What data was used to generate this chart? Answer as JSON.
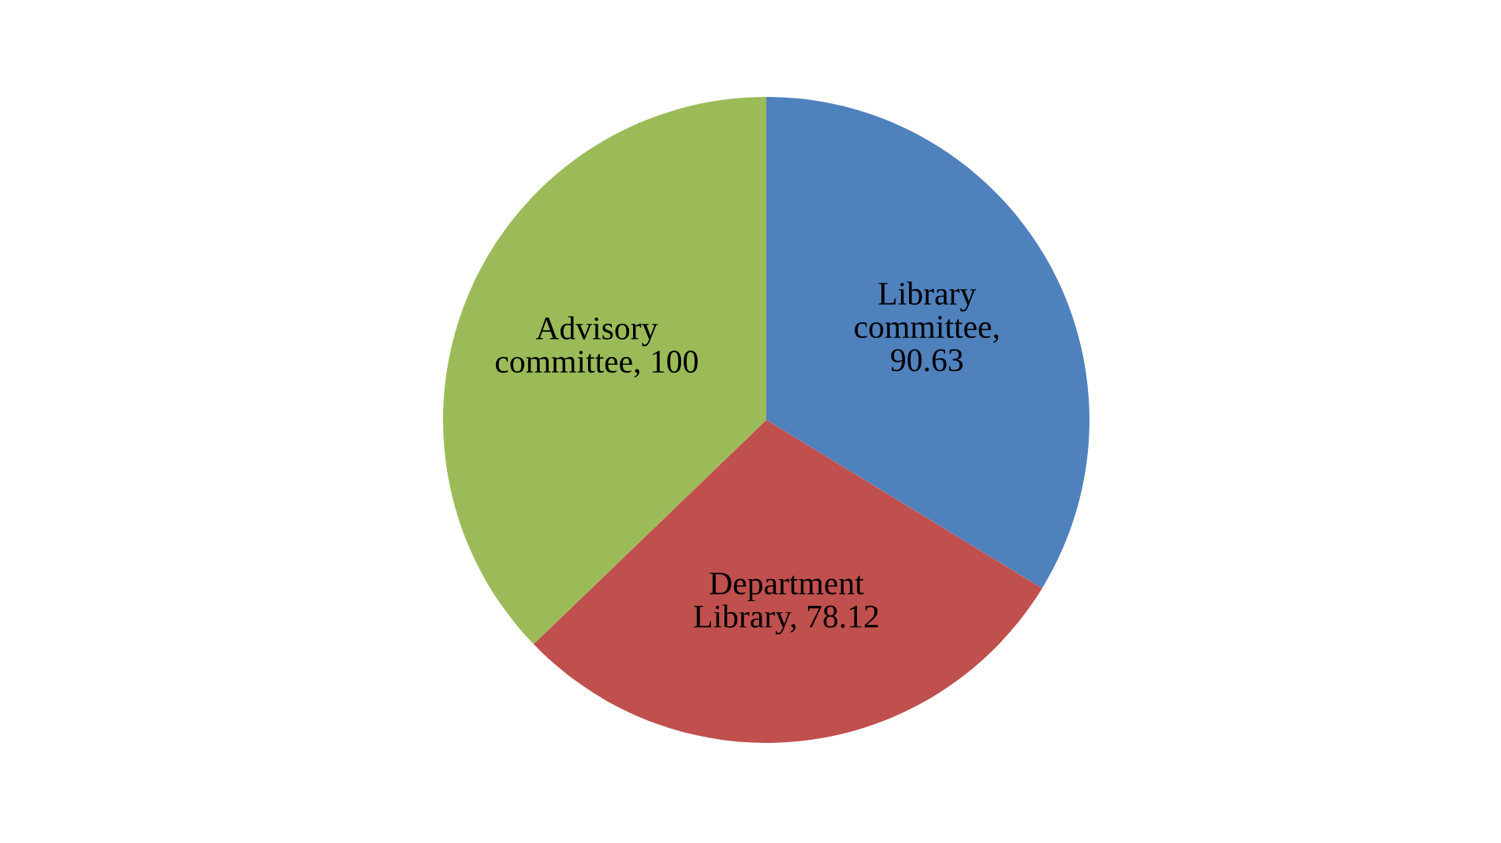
{
  "chart_data": {
    "type": "pie",
    "categories": [
      "Library committee",
      "Department Library",
      "Advisory committee"
    ],
    "values": [
      90.63,
      78.12,
      100
    ],
    "value_labels": [
      ", 90.63",
      ", 78.12",
      ", 100"
    ],
    "colors": [
      "#4f81bd",
      "#c0504d",
      "#9bbb59"
    ],
    "legend": false
  }
}
